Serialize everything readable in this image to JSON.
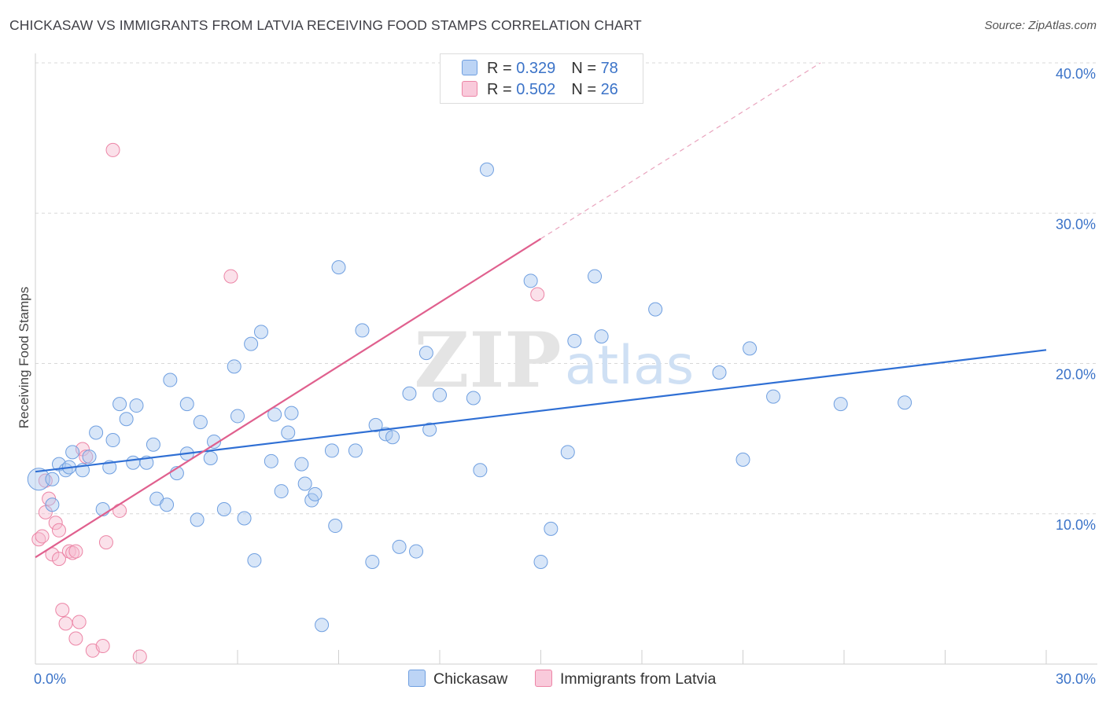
{
  "title": "CHICKASAW VS IMMIGRANTS FROM LATVIA RECEIVING FOOD STAMPS CORRELATION CHART",
  "source": "Source: ZipAtlas.com",
  "watermark": {
    "zip": "ZIP",
    "atlas": "atlas"
  },
  "legend": {
    "rows": [
      {
        "r_label": "R = ",
        "r_value": "0.329",
        "n_label": "N = ",
        "n_value": "78"
      },
      {
        "r_label": "R = ",
        "r_value": "0.502",
        "n_label": "N = ",
        "n_value": "26"
      }
    ]
  },
  "colors": {
    "blue_fill": "#a9c8f0",
    "blue_stroke": "#6f9fe0",
    "blue_line": "#2f6fd4",
    "pink_fill": "#f7bcd0",
    "pink_stroke": "#ec85a6",
    "pink_line": "#e0608e",
    "grid": "#d8d8d8",
    "axis_text": "#3b73c8"
  },
  "chart_data": {
    "type": "scatter",
    "title": "CHICKASAW VS IMMIGRANTS FROM LATVIA RECEIVING FOOD STAMPS CORRELATION CHART",
    "xlabel": "",
    "ylabel": "Receiving Food Stamps",
    "xlim": [
      0,
      30
    ],
    "ylim": [
      0,
      40
    ],
    "x_tick_labels": [
      "0.0%",
      "30.0%"
    ],
    "y_tick_labels": [
      "10.0%",
      "20.0%",
      "30.0%",
      "40.0%"
    ],
    "y_ticks": [
      10,
      20,
      30,
      40
    ],
    "legend_position": "top-center",
    "series": [
      {
        "name": "Chickasaw",
        "color": "#6f9fe0",
        "R": 0.329,
        "N": 78,
        "trend": {
          "x0": 0,
          "y0": 12.8,
          "x1": 30,
          "y1": 20.9,
          "dashed_from": null
        },
        "points": [
          [
            0.1,
            12.3
          ],
          [
            0.5,
            10.6
          ],
          [
            0.5,
            12.3
          ],
          [
            0.7,
            13.3
          ],
          [
            0.9,
            12.9
          ],
          [
            1.0,
            13.1
          ],
          [
            1.1,
            14.1
          ],
          [
            1.4,
            12.9
          ],
          [
            1.6,
            13.8
          ],
          [
            1.8,
            15.4
          ],
          [
            2.0,
            10.3
          ],
          [
            2.2,
            13.1
          ],
          [
            2.3,
            14.9
          ],
          [
            2.5,
            17.3
          ],
          [
            2.7,
            16.3
          ],
          [
            2.9,
            13.4
          ],
          [
            3.0,
            17.2
          ],
          [
            3.3,
            13.4
          ],
          [
            3.5,
            14.6
          ],
          [
            3.6,
            11.0
          ],
          [
            3.9,
            10.6
          ],
          [
            4.0,
            18.9
          ],
          [
            4.2,
            12.7
          ],
          [
            4.5,
            14.0
          ],
          [
            4.5,
            17.3
          ],
          [
            4.8,
            9.6
          ],
          [
            4.9,
            16.1
          ],
          [
            5.2,
            13.7
          ],
          [
            5.3,
            14.8
          ],
          [
            5.6,
            10.3
          ],
          [
            5.9,
            19.8
          ],
          [
            6.0,
            16.5
          ],
          [
            6.2,
            9.7
          ],
          [
            6.4,
            21.3
          ],
          [
            6.5,
            6.9
          ],
          [
            6.7,
            22.1
          ],
          [
            7.0,
            13.5
          ],
          [
            7.1,
            16.6
          ],
          [
            7.3,
            11.5
          ],
          [
            7.5,
            15.4
          ],
          [
            7.6,
            16.7
          ],
          [
            7.9,
            13.3
          ],
          [
            8.0,
            12.0
          ],
          [
            8.2,
            10.9
          ],
          [
            8.3,
            11.3
          ],
          [
            8.5,
            2.6
          ],
          [
            8.8,
            14.2
          ],
          [
            8.9,
            9.2
          ],
          [
            9.0,
            26.4
          ],
          [
            9.5,
            14.2
          ],
          [
            9.7,
            22.2
          ],
          [
            10.0,
            6.8
          ],
          [
            10.1,
            15.9
          ],
          [
            10.4,
            15.3
          ],
          [
            10.6,
            15.1
          ],
          [
            10.8,
            7.8
          ],
          [
            11.1,
            18.0
          ],
          [
            11.3,
            7.5
          ],
          [
            11.6,
            20.7
          ],
          [
            11.7,
            15.6
          ],
          [
            12.0,
            17.9
          ],
          [
            13.0,
            17.7
          ],
          [
            13.2,
            12.9
          ],
          [
            13.4,
            32.9
          ],
          [
            14.7,
            25.5
          ],
          [
            15.0,
            6.8
          ],
          [
            15.3,
            9.0
          ],
          [
            15.8,
            14.1
          ],
          [
            16.0,
            21.5
          ],
          [
            16.6,
            25.8
          ],
          [
            16.8,
            21.8
          ],
          [
            18.4,
            23.6
          ],
          [
            20.3,
            19.4
          ],
          [
            21.0,
            13.6
          ],
          [
            21.2,
            21.0
          ],
          [
            21.9,
            17.8
          ],
          [
            23.9,
            17.3
          ],
          [
            25.8,
            17.4
          ]
        ]
      },
      {
        "name": "Immigrants from Latvia",
        "color": "#ec85a6",
        "R": 0.502,
        "N": 26,
        "trend": {
          "x0": 0,
          "y0": 7.1,
          "x1": 15,
          "y1": 28.3,
          "dashed_to_x": 23.3,
          "dashed_to_y": 40.0
        },
        "points": [
          [
            0.1,
            8.3
          ],
          [
            0.2,
            8.5
          ],
          [
            0.3,
            10.1
          ],
          [
            0.4,
            11.0
          ],
          [
            0.5,
            7.3
          ],
          [
            0.6,
            9.4
          ],
          [
            0.7,
            8.9
          ],
          [
            0.7,
            7.0
          ],
          [
            0.8,
            3.6
          ],
          [
            0.9,
            2.7
          ],
          [
            1.0,
            7.5
          ],
          [
            1.1,
            7.4
          ],
          [
            1.2,
            1.7
          ],
          [
            1.2,
            7.5
          ],
          [
            1.3,
            2.8
          ],
          [
            1.4,
            14.3
          ],
          [
            1.5,
            13.8
          ],
          [
            1.7,
            0.9
          ],
          [
            2.0,
            1.2
          ],
          [
            2.1,
            8.1
          ],
          [
            2.3,
            34.2
          ],
          [
            2.5,
            10.2
          ],
          [
            3.1,
            0.5
          ],
          [
            5.8,
            25.8
          ],
          [
            14.9,
            24.6
          ],
          [
            0.3,
            12.2
          ]
        ]
      }
    ]
  },
  "bottom_legend": [
    {
      "label": "Chickasaw"
    },
    {
      "label": "Immigrants from Latvia"
    }
  ]
}
